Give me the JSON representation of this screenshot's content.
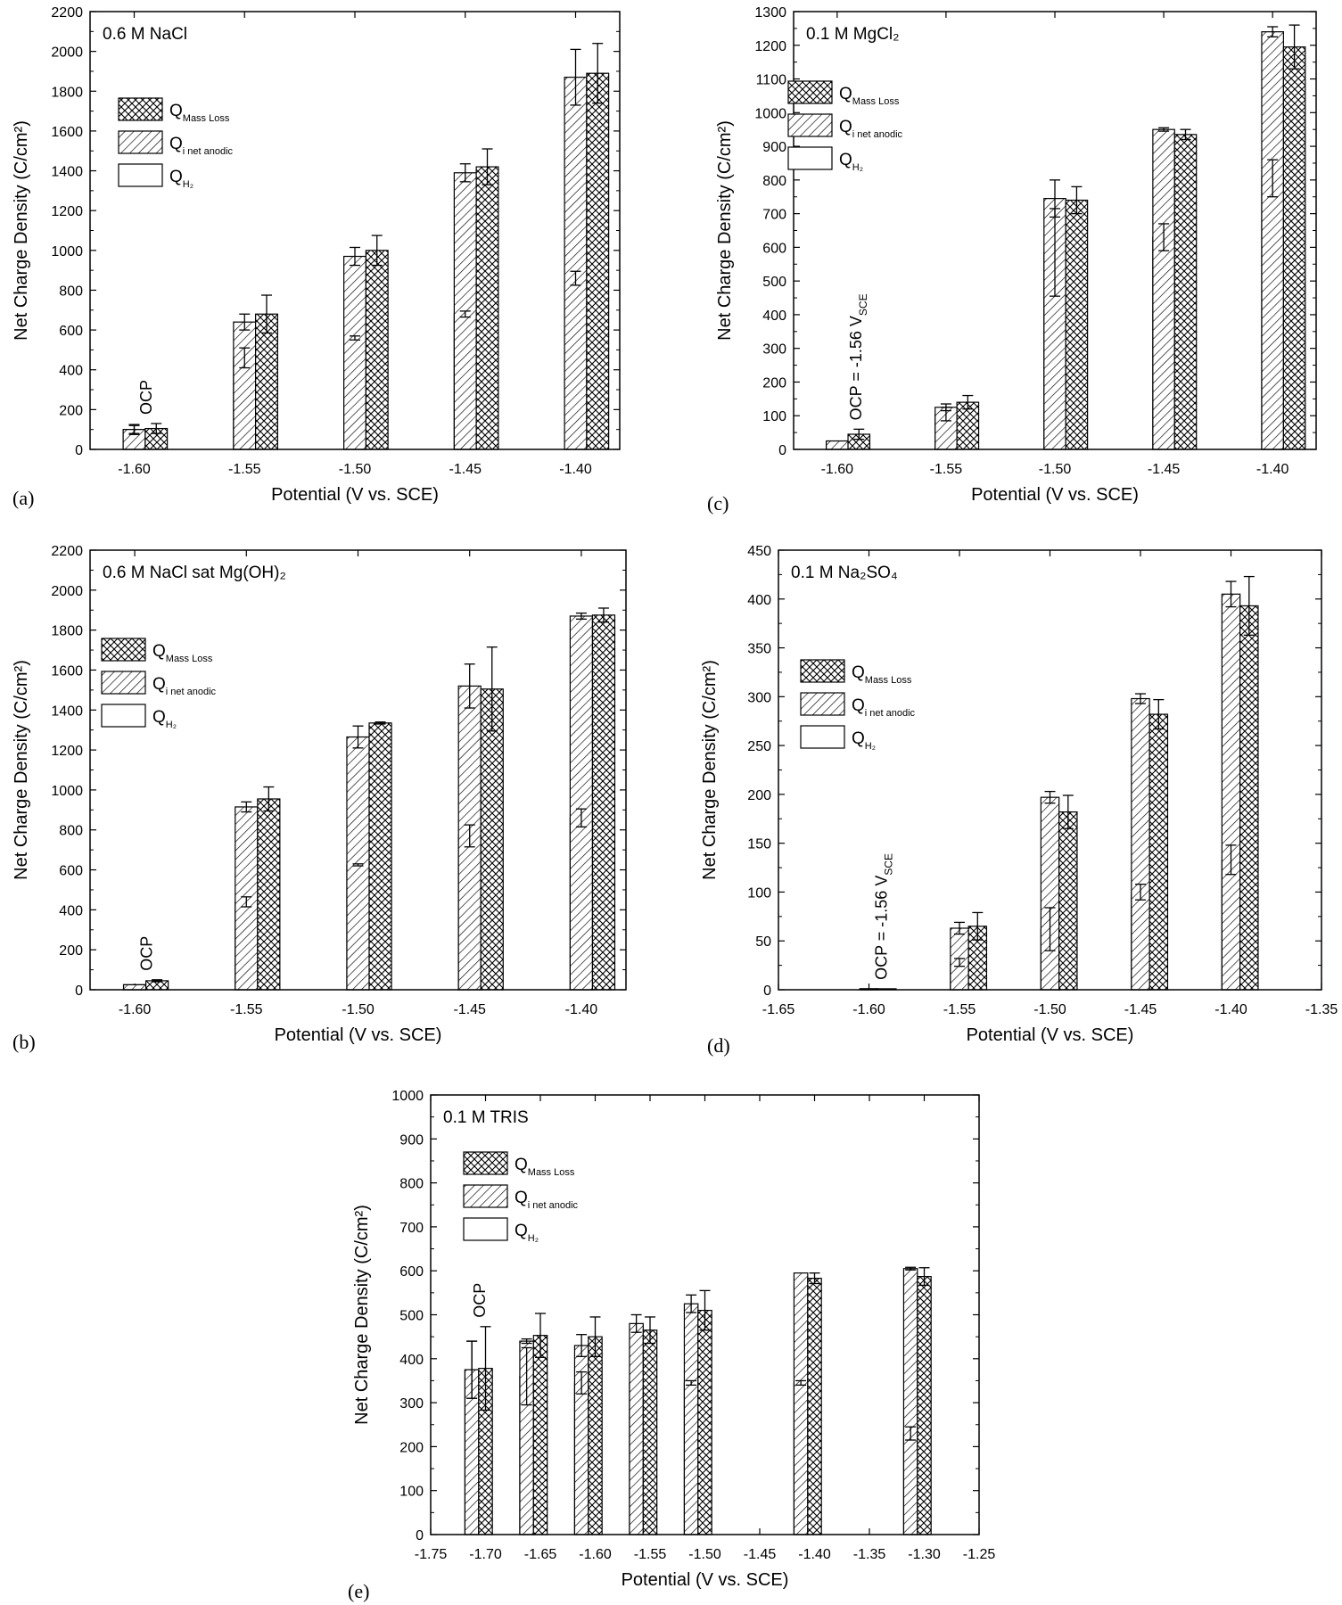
{
  "legend": {
    "entries": [
      {
        "key": "mass_loss",
        "main": "Q",
        "sub": "Mass Loss",
        "pattern": "crosshatch"
      },
      {
        "key": "i_net_anodic",
        "main": "Q",
        "sub": "i net anodic",
        "pattern": "diagonal"
      },
      {
        "key": "h2",
        "main": "Q",
        "sub": "H₂",
        "pattern": "white"
      }
    ]
  },
  "chart_data": [
    {
      "type": "bar",
      "panel_label": "(a)",
      "title": "0.6 M NaCl",
      "xlabel": "Potential (V vs. SCE)",
      "ylabel": "Net Charge Density (C/cm²)",
      "ylim": [
        0,
        2200
      ],
      "ytick_step": 200,
      "xlim": [
        -1.62,
        -1.38
      ],
      "xticks": [
        "-1.60",
        "-1.55",
        "-1.50",
        "-1.45",
        "-1.40"
      ],
      "annotation": "OCP",
      "bar_width": 0.01,
      "series": [
        {
          "name": "Q_H2",
          "x": [
            -1.6,
            -1.55,
            -1.5,
            -1.45,
            -1.4
          ],
          "values": [
            100,
            460,
            560,
            680,
            860
          ],
          "err": [
            25,
            50,
            10,
            15,
            35
          ]
        },
        {
          "name": "Q_i net anodic",
          "x": [
            -1.6,
            -1.55,
            -1.5,
            -1.45,
            -1.4
          ],
          "values": [
            100,
            640,
            970,
            1390,
            1870
          ],
          "err": [
            20,
            40,
            45,
            45,
            140
          ]
        },
        {
          "name": "Q_Mass Loss",
          "x": [
            -1.59,
            -1.54,
            -1.49,
            -1.44,
            -1.39
          ],
          "values": [
            105,
            680,
            1000,
            1420,
            1890
          ],
          "err": [
            25,
            95,
            75,
            90,
            150
          ]
        }
      ]
    },
    {
      "type": "bar",
      "panel_label": "(c)",
      "title": "0.1 M MgCl₂",
      "xlabel": "Potential (V vs. SCE)",
      "ylabel": "Net Charge Density (C/cm²)",
      "ylim": [
        0,
        1300
      ],
      "ytick_step": 100,
      "xlim": [
        -1.62,
        -1.38
      ],
      "xticks": [
        "-1.60",
        "-1.55",
        "-1.50",
        "-1.45",
        "-1.40"
      ],
      "annotation": "OCP = -1.56 V_SCE",
      "bar_width": 0.01,
      "series": [
        {
          "name": "Q_H2",
          "x": [
            -1.6,
            -1.55,
            -1.5,
            -1.45,
            -1.4
          ],
          "values": [
            25,
            105,
            585,
            630,
            805
          ],
          "err": [
            0,
            20,
            130,
            40,
            55
          ]
        },
        {
          "name": "Q_i net anodic",
          "x": [
            -1.6,
            -1.55,
            -1.5,
            -1.45,
            -1.4
          ],
          "values": [
            25,
            125,
            745,
            950,
            1240
          ],
          "err": [
            0,
            10,
            55,
            5,
            15
          ]
        },
        {
          "name": "Q_Mass Loss",
          "x": [
            -1.59,
            -1.54,
            -1.49,
            -1.44,
            -1.39
          ],
          "values": [
            45,
            140,
            740,
            935,
            1195
          ],
          "err": [
            15,
            20,
            40,
            15,
            65
          ]
        }
      ]
    },
    {
      "type": "bar",
      "panel_label": "(b)",
      "title": "0.6 M NaCl sat Mg(OH)₂",
      "xlabel": "Potential (V vs. SCE)",
      "ylabel": "Net Charge Density (C/cm²)",
      "ylim": [
        0,
        2200
      ],
      "ytick_step": 200,
      "xlim": [
        -1.62,
        -1.38
      ],
      "xticks": [
        "-1.60",
        "-1.55",
        "-1.50",
        "-1.45",
        "-1.40"
      ],
      "annotation": "OCP",
      "bar_width": 0.01,
      "series": [
        {
          "name": "Q_H2",
          "x": [
            -1.6,
            -1.55,
            -1.5,
            -1.45,
            -1.4
          ],
          "values": [
            25,
            440,
            625,
            770,
            860
          ],
          "err": [
            0,
            25,
            5,
            55,
            45
          ]
        },
        {
          "name": "Q_i net anodic",
          "x": [
            -1.6,
            -1.55,
            -1.5,
            -1.45,
            -1.4
          ],
          "values": [
            25,
            915,
            1265,
            1520,
            1870
          ],
          "err": [
            0,
            25,
            55,
            110,
            15
          ]
        },
        {
          "name": "Q_Mass Loss",
          "x": [
            -1.59,
            -1.54,
            -1.49,
            -1.44,
            -1.39
          ],
          "values": [
            45,
            955,
            1335,
            1505,
            1875
          ],
          "err": [
            5,
            60,
            5,
            210,
            35
          ]
        }
      ]
    },
    {
      "type": "bar",
      "panel_label": "(d)",
      "title": "0.1 M Na₂SO₄",
      "xlabel": "Potential (V vs. SCE)",
      "ylabel": "Net Charge Density (C/cm²)",
      "ylim": [
        0,
        450
      ],
      "ytick_step": 50,
      "xlim": [
        -1.65,
        -1.35
      ],
      "xticks": [
        "-1.65",
        "-1.60",
        "-1.55",
        "-1.50",
        "-1.45",
        "-1.40",
        "-1.35"
      ],
      "annotation": "OCP = -1.56 V_SCE",
      "bar_width": 0.01,
      "series": [
        {
          "name": "Q_H2",
          "x": [
            -1.6,
            -1.55,
            -1.5,
            -1.45,
            -1.4
          ],
          "values": [
            1,
            28,
            62,
            100,
            133
          ],
          "err": [
            0,
            4,
            22,
            8,
            15
          ]
        },
        {
          "name": "Q_i net anodic",
          "x": [
            -1.6,
            -1.55,
            -1.5,
            -1.45,
            -1.4
          ],
          "values": [
            1,
            63,
            197,
            298,
            405
          ],
          "err": [
            0,
            6,
            6,
            5,
            13
          ]
        },
        {
          "name": "Q_Mass Loss",
          "x": [
            -1.59,
            -1.54,
            -1.49,
            -1.44,
            -1.39
          ],
          "values": [
            1,
            65,
            182,
            282,
            393
          ],
          "err": [
            0,
            14,
            17,
            15,
            30
          ]
        }
      ]
    },
    {
      "type": "bar",
      "panel_label": "(e)",
      "title": "0.1 M TRIS",
      "xlabel": "Potential (V vs. SCE)",
      "ylabel": "Net Charge Density (C/cm²)",
      "ylim": [
        0,
        1000
      ],
      "ytick_step": 100,
      "xlim": [
        -1.75,
        -1.25
      ],
      "xticks": [
        "-1.75",
        "-1.70",
        "-1.65",
        "-1.60",
        "-1.55",
        "-1.50",
        "-1.45",
        "-1.40",
        "-1.35",
        "-1.30",
        "-1.25"
      ],
      "annotation": "OCP",
      "bar_width": 0.0125,
      "series": [
        {
          "name": "Q_H2",
          "x": [
            -1.7125,
            -1.6625,
            -1.6125,
            -1.5625,
            -1.5125,
            -1.4125,
            -1.3125
          ],
          "values": [
            375,
            360,
            345,
            345,
            345,
            345,
            230
          ],
          "err": [
            65,
            65,
            25,
            0,
            5,
            5,
            15
          ]
        },
        {
          "name": "Q_i net anodic",
          "x": [
            -1.7125,
            -1.6625,
            -1.6125,
            -1.5625,
            -1.5125,
            -1.4125,
            -1.3125
          ],
          "values": [
            375,
            440,
            430,
            480,
            525,
            595,
            605
          ],
          "err": [
            65,
            5,
            25,
            20,
            20,
            0,
            3
          ]
        },
        {
          "name": "Q_Mass Loss",
          "x": [
            -1.7,
            -1.65,
            -1.6,
            -1.55,
            -1.5,
            -1.4,
            -1.3
          ],
          "values": [
            378,
            453,
            450,
            465,
            510,
            583,
            587
          ],
          "err": [
            95,
            50,
            45,
            30,
            45,
            12,
            20
          ]
        }
      ]
    }
  ]
}
